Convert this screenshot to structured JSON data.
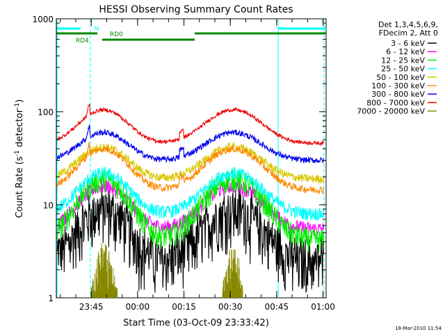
{
  "footer_date": "18-Mar-2010 11:54",
  "chart_data": {
    "type": "line",
    "title": "HESSI Observing Summary Count Rates",
    "xlabel": "Start Time (03-Oct-09 23:33:42)",
    "ylabel_main": "Count Rate (s",
    "ylabel_sup1": "-1",
    "ylabel_mid": " detector",
    "ylabel_sup2": "-1",
    "ylabel_end": ")",
    "y_scale": "log",
    "ylim": [
      1,
      1000
    ],
    "xlim_minutes_from_2340": [
      -6.3,
      81
    ],
    "x_ticks": [
      {
        "label": "23:45",
        "t": 5
      },
      {
        "label": "00:00",
        "t": 20
      },
      {
        "label": "00:15",
        "t": 35
      },
      {
        "label": "00:30",
        "t": 50
      },
      {
        "label": "00:45",
        "t": 65
      },
      {
        "label": "01:00",
        "t": 80
      }
    ],
    "y_ticks": [
      {
        "label": "1",
        "v": 1
      },
      {
        "label": "10",
        "v": 10
      },
      {
        "label": "100",
        "v": 100
      },
      {
        "label": "1000",
        "v": 1000
      }
    ],
    "legend_header": [
      "Det 1,3,4,5,6,9,",
      "FDecim 2, Att 0"
    ],
    "legend_placement": "right",
    "series": [
      {
        "name": "3 - 6 keV",
        "color": "#000000",
        "base": 2.5,
        "peak": 9,
        "noise": 0.35
      },
      {
        "name": "6 - 12 keV",
        "color": "#ff00ff",
        "base": 5.5,
        "peak": 16,
        "noise": 0.1
      },
      {
        "name": "12 - 25 keV",
        "color": "#00ee00",
        "base": 4.2,
        "peak": 19,
        "noise": 0.16
      },
      {
        "name": "25 - 50 keV",
        "color": "#00ffff",
        "base": 8,
        "peak": 22,
        "noise": 0.09
      },
      {
        "name": "50 - 100 keV",
        "color": "#d8c800",
        "base": 19,
        "peak": 42,
        "noise": 0.06
      },
      {
        "name": "100 - 300 keV",
        "color": "#ff8800",
        "base": 14.5,
        "peak": 40,
        "noise": 0.05
      },
      {
        "name": "300 - 800 keV",
        "color": "#0000ee",
        "base": 30,
        "peak": 60,
        "noise": 0.04
      },
      {
        "name": "800 - 7000 keV",
        "color": "#ee0000",
        "base": 46,
        "peak": 105,
        "noise": 0.025
      },
      {
        "name": "7000 - 20000 keV",
        "color": "#888800",
        "base": 1,
        "peak": 3.4,
        "noise": 0
      }
    ],
    "annotations": [
      {
        "label": "N",
        "color": "#00ffff"
      },
      {
        "label": "RD0",
        "color": "#008800"
      },
      {
        "label": "RD4",
        "color": "#008800"
      }
    ],
    "grid": false
  }
}
